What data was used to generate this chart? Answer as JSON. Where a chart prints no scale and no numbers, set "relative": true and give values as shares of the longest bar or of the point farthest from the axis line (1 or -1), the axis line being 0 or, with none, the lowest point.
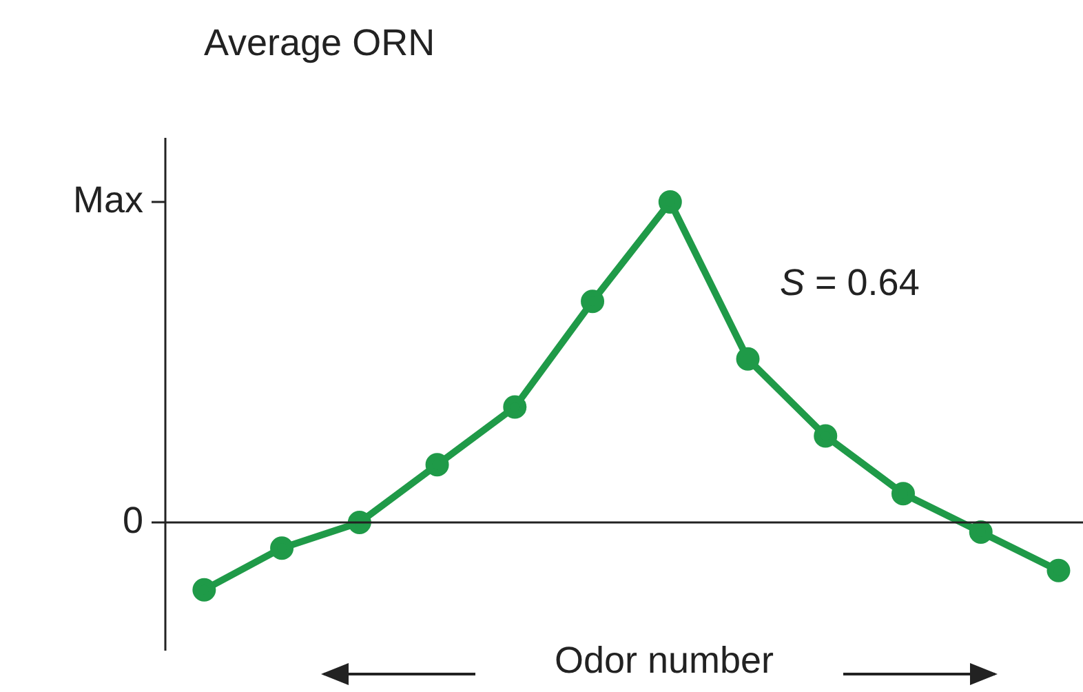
{
  "chart_data": {
    "type": "line",
    "title": "Average ORN",
    "xlabel": "Odor number",
    "relative": true,
    "categories": [
      null,
      null,
      null,
      null,
      null,
      null,
      null,
      null,
      null,
      null,
      null,
      null
    ],
    "series": [
      {
        "color": "#1f9a48",
        "values": [
          -0.21,
          -0.08,
          0,
          0.18,
          0.36,
          0.69,
          1,
          0.51,
          0.27,
          0.09,
          -0.03,
          -0.15
        ]
      }
    ],
    "annotations": [
      "S = 0.64",
      "Max",
      "0"
    ],
    "marker": "circle",
    "line_style": "solid",
    "grid": false,
    "legend": false
  }
}
